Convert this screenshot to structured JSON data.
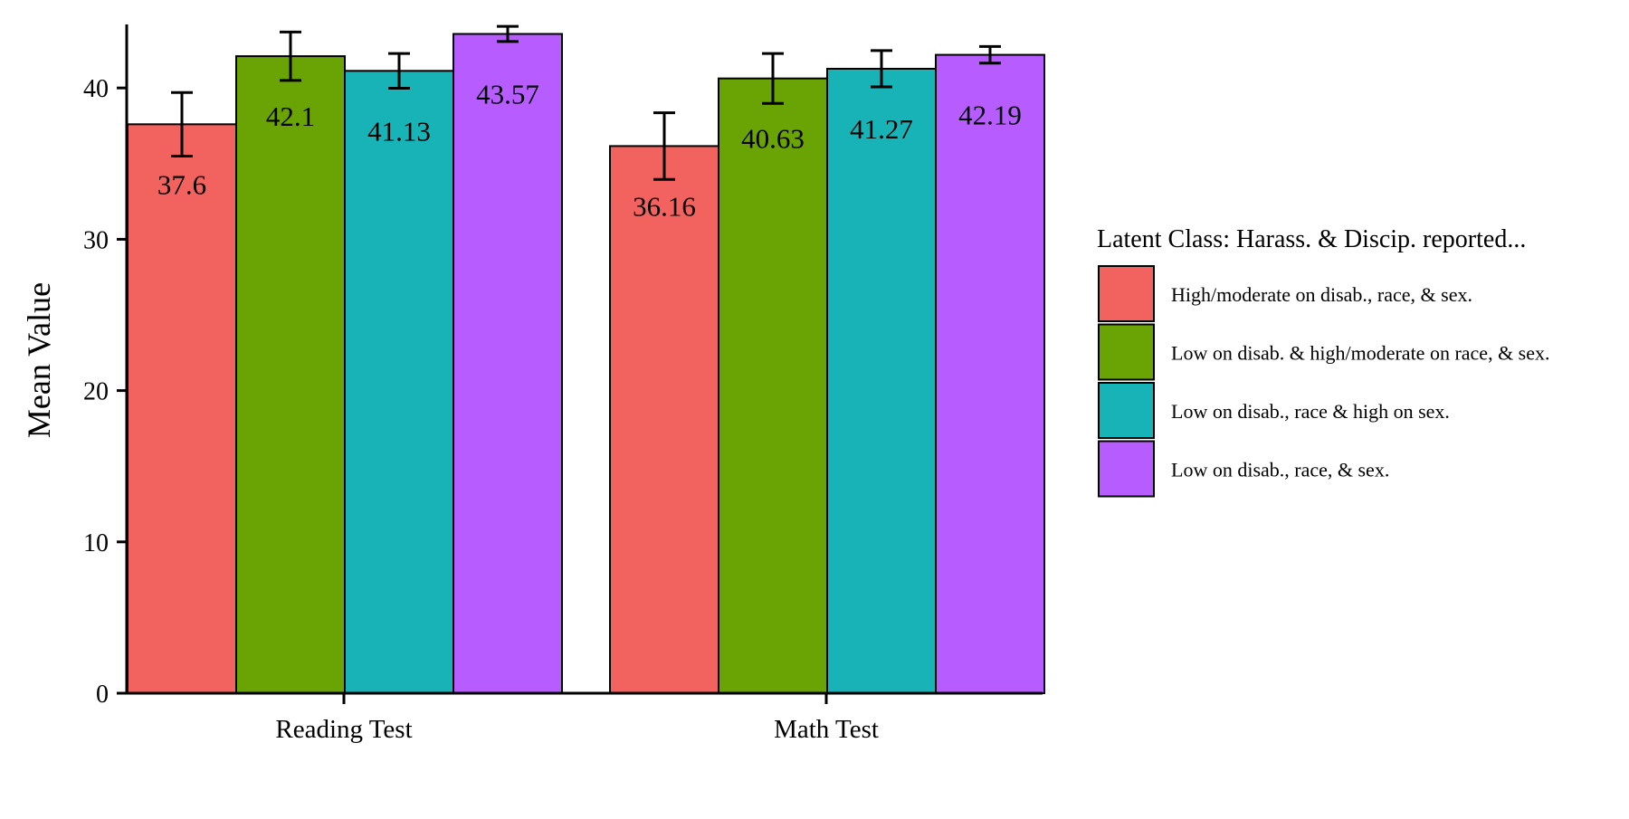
{
  "chart_data": {
    "type": "bar",
    "ylabel": "Mean Value",
    "xlabel": "",
    "ylim": [
      0,
      44
    ],
    "yticks": [
      0,
      10,
      20,
      30,
      40
    ],
    "categories": [
      "Reading Test",
      "Math Test"
    ],
    "series": [
      {
        "name": "High/moderate on disab., race, & sex.",
        "color": "#F26360",
        "values": [
          37.6,
          36.16
        ],
        "errors": [
          2.1,
          2.2
        ],
        "labels": [
          "37.6",
          "36.16"
        ]
      },
      {
        "name": "Low on disab. & high/moderate on race, & sex.",
        "color": "#6AA304",
        "values": [
          42.1,
          40.63
        ],
        "errors": [
          1.6,
          1.65
        ],
        "labels": [
          "42.1",
          "40.63"
        ]
      },
      {
        "name": "Low on disab., race & high on sex.",
        "color": "#18B3B6",
        "values": [
          41.13,
          41.27
        ],
        "errors": [
          1.15,
          1.2
        ],
        "labels": [
          "41.13",
          "41.27"
        ]
      },
      {
        "name": "Low on disab., race, & sex.",
        "color": "#B75DFF",
        "values": [
          43.57,
          42.19
        ],
        "errors": [
          0.5,
          0.55
        ],
        "labels": [
          "43.57",
          "42.19"
        ]
      }
    ],
    "legend": {
      "title": "Latent Class: Harass. & Discip. reported...",
      "position": "right"
    }
  }
}
